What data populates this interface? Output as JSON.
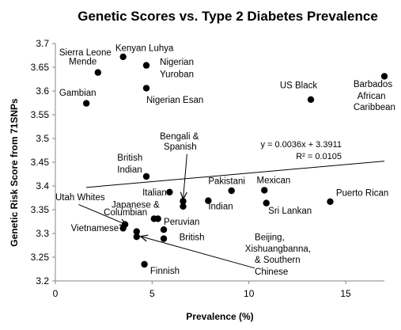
{
  "chart_data": {
    "type": "scatter",
    "title": "Genetic Scores vs. Type 2 Diabetes Prevalence",
    "xlabel": "Prevalence (%)",
    "ylabel": "Genetic Risk Score from 71SNPs",
    "xlim": [
      0,
      17
    ],
    "ylim": [
      3.2,
      3.7
    ],
    "xticks": [
      "0",
      "5",
      "10",
      "15"
    ],
    "yticks": [
      "3.2",
      "3.25",
      "3.3",
      "3.35",
      "3.4",
      "3.45",
      "3.5",
      "3.55",
      "3.6",
      "3.65",
      "3.7"
    ],
    "grid": false,
    "points": [
      {
        "x": 3.5,
        "y": 3.672
      },
      {
        "x": 4.7,
        "y": 3.654
      },
      {
        "x": 2.2,
        "y": 3.639
      },
      {
        "x": 4.7,
        "y": 3.606
      },
      {
        "x": 1.6,
        "y": 3.574
      },
      {
        "x": 13.2,
        "y": 3.582
      },
      {
        "x": 17.0,
        "y": 3.631
      },
      {
        "x": 4.7,
        "y": 3.42
      },
      {
        "x": 5.9,
        "y": 3.387
      },
      {
        "x": 6.6,
        "y": 3.368
      },
      {
        "x": 6.6,
        "y": 3.357
      },
      {
        "x": 7.9,
        "y": 3.369
      },
      {
        "x": 9.1,
        "y": 3.39
      },
      {
        "x": 10.8,
        "y": 3.391
      },
      {
        "x": 10.9,
        "y": 3.364
      },
      {
        "x": 14.2,
        "y": 3.367
      },
      {
        "x": 5.1,
        "y": 3.331
      },
      {
        "x": 5.3,
        "y": 3.331
      },
      {
        "x": 3.6,
        "y": 3.319
      },
      {
        "x": 3.5,
        "y": 3.311
      },
      {
        "x": 4.2,
        "y": 3.304
      },
      {
        "x": 4.2,
        "y": 3.293
      },
      {
        "x": 5.6,
        "y": 3.308
      },
      {
        "x": 5.6,
        "y": 3.289
      },
      {
        "x": 4.6,
        "y": 3.235
      }
    ],
    "labels": [
      {
        "text": "Kenyan Luhya",
        "x": 3.1,
        "y": 3.684
      },
      {
        "text": "Sierra Leone",
        "x": 0.2,
        "y": 3.675
      },
      {
        "text": "Mende",
        "x": 0.7,
        "y": 3.656
      },
      {
        "text": "Nigerian",
        "x": 5.4,
        "y": 3.655
      },
      {
        "text": "Yuroban",
        "x": 5.4,
        "y": 3.629
      },
      {
        "text": "Gambian",
        "x": 0.2,
        "y": 3.59
      },
      {
        "text": "Nigerian Esan",
        "x": 4.7,
        "y": 3.575
      },
      {
        "text": "US Black",
        "x": 11.6,
        "y": 3.606
      },
      {
        "text": "Barbados",
        "x": 15.4,
        "y": 3.608
      },
      {
        "text": "African",
        "x": 15.6,
        "y": 3.583
      },
      {
        "text": "Caribbean",
        "x": 15.4,
        "y": 3.56
      },
      {
        "text": "Bengali &",
        "x": 5.4,
        "y": 3.498
      },
      {
        "text": "Spanish",
        "x": 5.6,
        "y": 3.477
      },
      {
        "text": "British",
        "x": 3.2,
        "y": 3.453
      },
      {
        "text": "Indian",
        "x": 3.2,
        "y": 3.428
      },
      {
        "text": "Italian",
        "x": 4.5,
        "y": 3.38
      },
      {
        "text": "Pakistani",
        "x": 7.9,
        "y": 3.404
      },
      {
        "text": "Mexican",
        "x": 10.4,
        "y": 3.406
      },
      {
        "text": "Puerto Rican",
        "x": 14.5,
        "y": 3.379
      },
      {
        "text": "Indian",
        "x": 7.9,
        "y": 3.351
      },
      {
        "text": "Sri Lankan",
        "x": 11.0,
        "y": 3.342
      },
      {
        "text": "Utah Whites",
        "x": 0.0,
        "y": 3.37
      },
      {
        "text": "Japanese &",
        "x": 2.9,
        "y": 3.354
      },
      {
        "text": "Columbian",
        "x": 2.5,
        "y": 3.338
      },
      {
        "text": "Vietnamese",
        "x": 0.8,
        "y": 3.305
      },
      {
        "text": "Peruvian",
        "x": 5.6,
        "y": 3.318
      },
      {
        "text": "British",
        "x": 6.4,
        "y": 3.286
      },
      {
        "text": "Beijing,",
        "x": 10.3,
        "y": 3.286
      },
      {
        "text": "Xishuangbanna,",
        "x": 9.8,
        "y": 3.262
      },
      {
        "text": "& Southern",
        "x": 10.3,
        "y": 3.238
      },
      {
        "text": "Chinese",
        "x": 10.3,
        "y": 3.213
      },
      {
        "text": "Finnish",
        "x": 4.9,
        "y": 3.215
      }
    ],
    "trendline": {
      "slope": 0.0036,
      "intercept": 3.3911,
      "x_range": [
        1.6,
        17.0
      ]
    },
    "equation_lines": [
      "y = 0.0036x + 3.3911",
      "R² = 0.0105"
    ],
    "arrows": [
      {
        "from": [
          6.8,
          3.467
        ],
        "to": [
          6.6,
          3.372
        ]
      },
      {
        "from": [
          1.2,
          3.361
        ],
        "to": [
          3.7,
          3.318
        ]
      },
      {
        "from": [
          10.3,
          3.227
        ],
        "to": [
          4.4,
          3.294
        ]
      }
    ]
  }
}
